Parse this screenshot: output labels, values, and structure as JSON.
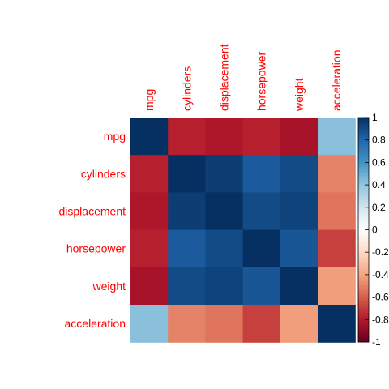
{
  "chart_data": {
    "type": "heatmap",
    "row_labels": [
      "mpg",
      "cylinders",
      "displacement",
      "horsepower",
      "weight",
      "acceleration"
    ],
    "col_labels": [
      "mpg",
      "cylinders",
      "displacement",
      "horsepower",
      "weight",
      "acceleration"
    ],
    "matrix": [
      [
        1.0,
        -0.78,
        -0.81,
        -0.78,
        -0.83,
        0.42
      ],
      [
        -0.78,
        1.0,
        0.95,
        0.84,
        0.9,
        -0.5
      ],
      [
        -0.81,
        0.95,
        1.0,
        0.9,
        0.93,
        -0.54
      ],
      [
        -0.78,
        0.84,
        0.9,
        1.0,
        0.86,
        -0.69
      ],
      [
        -0.83,
        0.9,
        0.93,
        0.86,
        1.0,
        -0.42
      ],
      [
        0.42,
        -0.5,
        -0.54,
        -0.69,
        -0.42,
        1.0
      ]
    ],
    "colorbar": {
      "range": [
        -1,
        1
      ],
      "ticks": [
        "1",
        "0.8",
        "0.6",
        "0.4",
        "0.2",
        "0",
        "-0.2",
        "-0.4",
        "-0.6",
        "-0.8",
        "-1"
      ],
      "tick_values": [
        1,
        0.8,
        0.6,
        0.4,
        0.2,
        0,
        -0.2,
        -0.4,
        -0.6,
        -0.8,
        -1
      ]
    },
    "colors": {
      "label": "#ff0000",
      "scale": [
        "#67001f",
        "#b2182b",
        "#d6604d",
        "#f4a582",
        "#fddbc7",
        "#ffffff",
        "#d1e5f0",
        "#92c5de",
        "#4393c3",
        "#2166ac",
        "#053061"
      ]
    }
  }
}
